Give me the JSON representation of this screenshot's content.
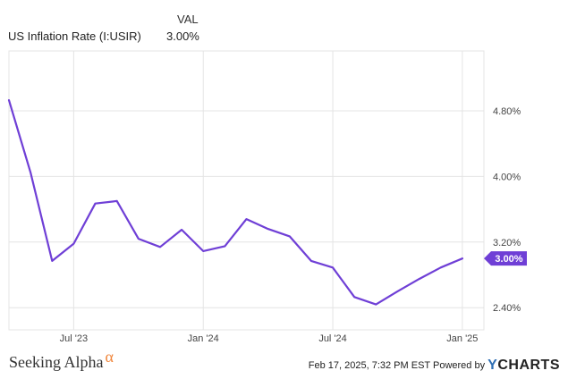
{
  "legend": {
    "column_header": "VAL",
    "series_name": "US Inflation Rate (I:USIR)",
    "series_value": "3.00%"
  },
  "footer": {
    "brand": "Seeking Alpha",
    "brand_symbol": "α",
    "timestamp": "Feb 17, 2025, 7:32 PM EST",
    "powered_by": "Powered by",
    "provider_y": "Y",
    "provider_rest": "CHARTS"
  },
  "colors": {
    "line": "#6f3fd6",
    "badge": "#6f3fd6",
    "grid": "#e4e4e4",
    "brand_alpha": "#f0853a",
    "provider_y": "#2f6fb4"
  },
  "chart_data": {
    "type": "line",
    "x_tick_labels": [
      "Jul '23",
      "Jan '24",
      "Jul '24",
      "Jan '25"
    ],
    "x_ticks": [
      "2023-07",
      "2024-01",
      "2024-07",
      "2025-01"
    ],
    "y_tick_labels": [
      "2.40%",
      "3.20%",
      "4.00%",
      "4.80%"
    ],
    "y_ticks": [
      2.4,
      3.2,
      4.0,
      4.8
    ],
    "ylim": [
      2.13,
      5.53
    ],
    "xlim": [
      "2023-04",
      "2025-02"
    ],
    "last_value_label": "3.00%",
    "grid": true,
    "series": [
      {
        "name": "US Inflation Rate (I:USIR)",
        "x": [
          "2023-04",
          "2023-05",
          "2023-06",
          "2023-07",
          "2023-08",
          "2023-09",
          "2023-10",
          "2023-11",
          "2023-12",
          "2024-01",
          "2024-02",
          "2024-03",
          "2024-04",
          "2024-05",
          "2024-06",
          "2024-07",
          "2024-08",
          "2024-09",
          "2024-10",
          "2024-11",
          "2024-12",
          "2025-01"
        ],
        "values": [
          4.93,
          4.05,
          2.97,
          3.18,
          3.67,
          3.7,
          3.24,
          3.14,
          3.35,
          3.09,
          3.15,
          3.48,
          3.36,
          3.27,
          2.97,
          2.89,
          2.53,
          2.44,
          2.6,
          2.75,
          2.89,
          3.0
        ]
      }
    ]
  }
}
